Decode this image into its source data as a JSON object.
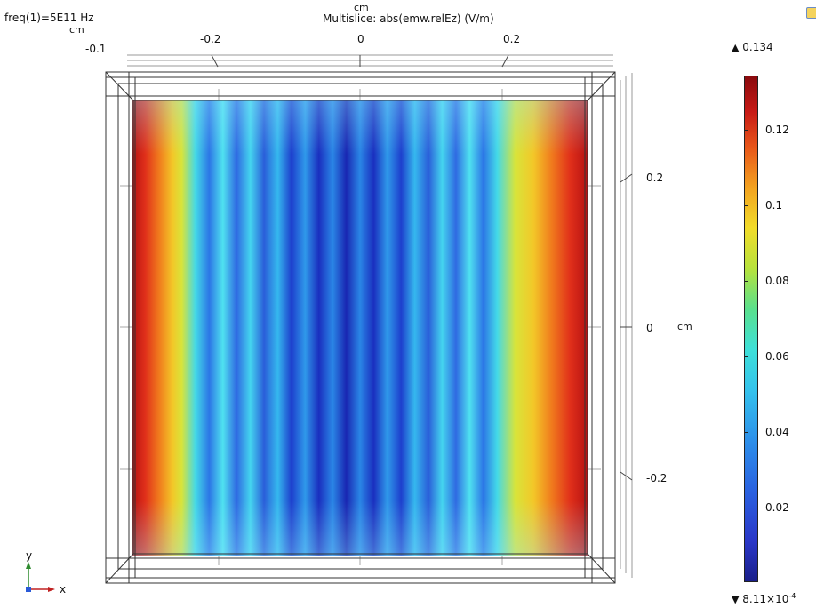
{
  "header": {
    "freq_label": "freq(1)=5E11 Hz",
    "top_unit": "cm",
    "top_left_unit": "cm",
    "title": "Multislice: abs(emw.relEz) (V/m)"
  },
  "x_axis_ticks": [
    "-0.1",
    "-0.2",
    "0",
    "0.2"
  ],
  "y_axis": {
    "ticks": [
      "0.2",
      "0",
      "-0.2"
    ],
    "unit": "cm"
  },
  "colorbar": {
    "max_label": "0.134",
    "min_label": "8.11×10",
    "min_exponent": "-4",
    "ticks": [
      "0.12",
      "0.1",
      "0.08",
      "0.06",
      "0.04",
      "0.02"
    ],
    "tick_values": [
      0.12,
      0.1,
      0.08,
      0.06,
      0.04,
      0.02
    ],
    "range": [
      0.000811,
      0.134
    ],
    "colormap": "Rainbow"
  },
  "triad": {
    "y_label": "y",
    "x_label": "x"
  },
  "colors": {
    "high": "#b40f12",
    "mid": "#3ee0d8",
    "low": "#1926b2",
    "axis_y": "#2e8b2e",
    "axis_x": "#c02020"
  }
}
